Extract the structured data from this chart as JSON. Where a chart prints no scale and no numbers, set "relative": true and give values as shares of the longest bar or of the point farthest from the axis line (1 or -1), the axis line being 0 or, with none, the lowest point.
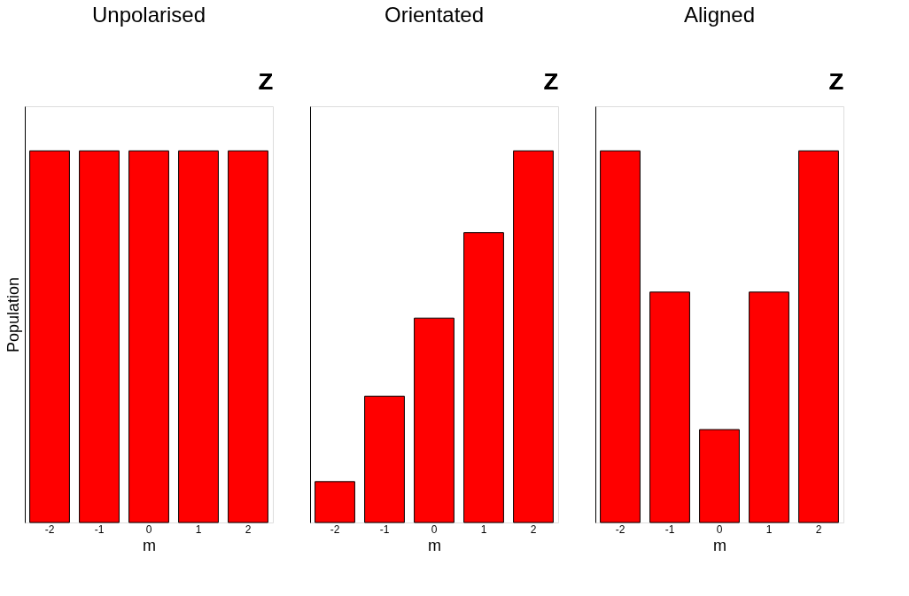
{
  "chart_data": [
    {
      "type": "bar",
      "title": "Unpolarised",
      "xlabel": "m",
      "ylabel": "Population",
      "relative": true,
      "categories": [
        "-2",
        "-1",
        "0",
        "1",
        "2"
      ],
      "values": [
        1,
        1,
        1,
        1,
        1
      ],
      "color": "#ff0000",
      "tick_labels": "x",
      "grid": false,
      "annotations": [
        "Z"
      ]
    },
    {
      "type": "bar",
      "title": "Orientated",
      "xlabel": "m",
      "relative": true,
      "categories": [
        "-2",
        "-1",
        "0",
        "1",
        "2"
      ],
      "values": [
        0.11,
        0.34,
        0.55,
        0.78,
        1
      ],
      "color": "#ff0000",
      "tick_labels": "x",
      "grid": false,
      "annotations": [
        "Z"
      ]
    },
    {
      "type": "bar",
      "title": "Aligned",
      "xlabel": "m",
      "relative": true,
      "categories": [
        "-2",
        "-1",
        "0",
        "1",
        "2"
      ],
      "values": [
        1,
        0.62,
        0.25,
        0.62,
        1
      ],
      "color": "#ff0000",
      "tick_labels": "x",
      "grid": false,
      "annotations": [
        "Z"
      ]
    }
  ]
}
